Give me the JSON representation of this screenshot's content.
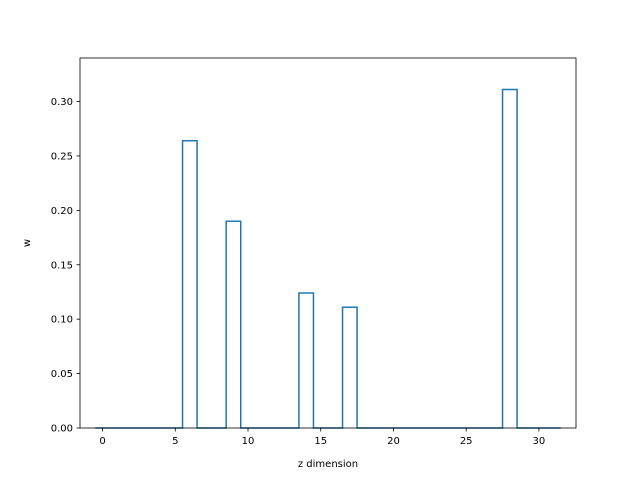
{
  "chart_data": {
    "type": "bar",
    "style": "step-histogram",
    "title": "",
    "xlabel": "z dimension",
    "ylabel": "w",
    "xlim": [
      -1.55,
      32.55
    ],
    "ylim": [
      0,
      0.34
    ],
    "xticks": [
      0,
      5,
      10,
      15,
      20,
      25,
      30
    ],
    "yticks": [
      0.0,
      0.05,
      0.1,
      0.15,
      0.2,
      0.25,
      0.3
    ],
    "ytick_labels": [
      "0.00",
      "0.05",
      "0.10",
      "0.15",
      "0.20",
      "0.25",
      "0.30"
    ],
    "grid": false,
    "color": "#1f77b4",
    "x": [
      0,
      1,
      2,
      3,
      4,
      5,
      6,
      7,
      8,
      9,
      10,
      11,
      12,
      13,
      14,
      15,
      16,
      17,
      18,
      19,
      20,
      21,
      22,
      23,
      24,
      25,
      26,
      27,
      28,
      29,
      30,
      31
    ],
    "values": [
      0,
      0,
      0,
      0,
      0,
      0,
      0.264,
      0,
      0,
      0.19,
      0,
      0,
      0,
      0,
      0.124,
      0,
      0,
      0.111,
      0,
      0,
      0,
      0,
      0,
      0,
      0,
      0,
      0,
      0,
      0.311,
      0,
      0,
      0
    ]
  }
}
